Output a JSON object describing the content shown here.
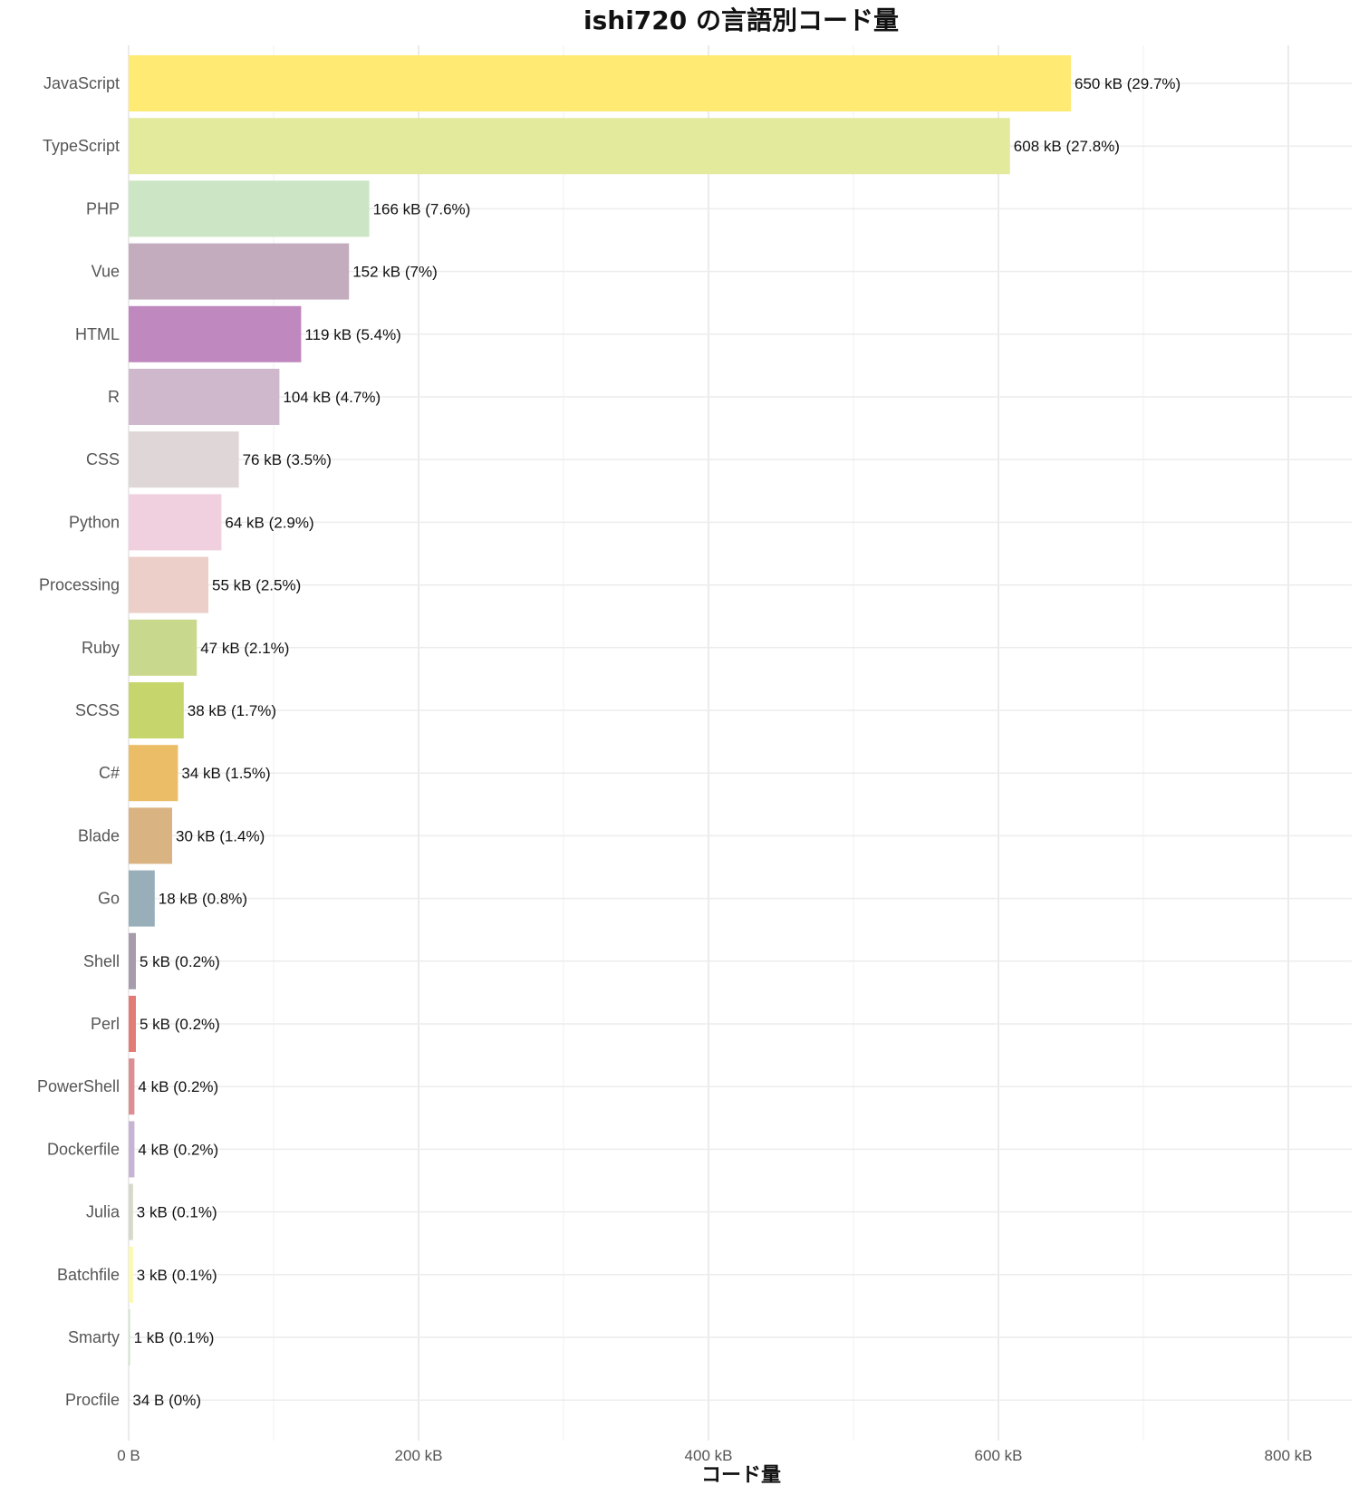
{
  "chart_data": {
    "type": "bar",
    "orientation": "horizontal",
    "title": "ishi720 の言語別コード量",
    "xlabel": "コード量",
    "ylabel": "",
    "xlim": [
      0,
      845
    ],
    "x_unit": "kB",
    "x_ticks": [
      {
        "value": 0,
        "label": "0 B"
      },
      {
        "value": 200,
        "label": "200 kB"
      },
      {
        "value": 400,
        "label": "400 kB"
      },
      {
        "value": 600,
        "label": "600 kB"
      },
      {
        "value": 800,
        "label": "800 kB"
      }
    ],
    "grid": true,
    "legend": "none",
    "categories": [
      "JavaScript",
      "TypeScript",
      "PHP",
      "Vue",
      "HTML",
      "R",
      "CSS",
      "Python",
      "Processing",
      "Ruby",
      "SCSS",
      "C#",
      "Blade",
      "Go",
      "Shell",
      "Perl",
      "PowerShell",
      "Dockerfile",
      "Julia",
      "Batchfile",
      "Smarty",
      "Procfile"
    ],
    "values": [
      650,
      608,
      166,
      152,
      119,
      104,
      76,
      64,
      55,
      47,
      38,
      34,
      30,
      18,
      5,
      5,
      4,
      4,
      3,
      3,
      1,
      0.034
    ],
    "labels": [
      "650 kB (29.7%)",
      "608 kB (27.8%)",
      "166 kB (7.6%)",
      "152 kB (7%)",
      "119 kB (5.4%)",
      "104 kB (4.7%)",
      "76 kB (3.5%)",
      "64 kB (2.9%)",
      "55 kB (2.5%)",
      "47 kB (2.1%)",
      "38 kB (1.7%)",
      "34 kB (1.5%)",
      "30 kB (1.4%)",
      "18 kB (0.8%)",
      "5 kB (0.2%)",
      "5 kB (0.2%)",
      "4 kB (0.2%)",
      "4 kB (0.2%)",
      "3 kB (0.1%)",
      "3 kB (0.1%)",
      "1 kB (0.1%)",
      "34 B (0%)"
    ],
    "colors": [
      "#FFEB74",
      "#E3EA9C",
      "#CCE5C4",
      "#C2ACBE",
      "#BF88BF",
      "#CFB8CC",
      "#DFD6D8",
      "#F0D0DE",
      "#EBCFC8",
      "#C8D88C",
      "#C6D56C",
      "#EBBD66",
      "#DAB383",
      "#98AFB9",
      "#A79CAC",
      "#E17D74",
      "#DD8E92",
      "#C5B4D3",
      "#D6D9C9",
      "#FBF8B0",
      "#CCE5C4",
      "#E0E0E0"
    ]
  }
}
